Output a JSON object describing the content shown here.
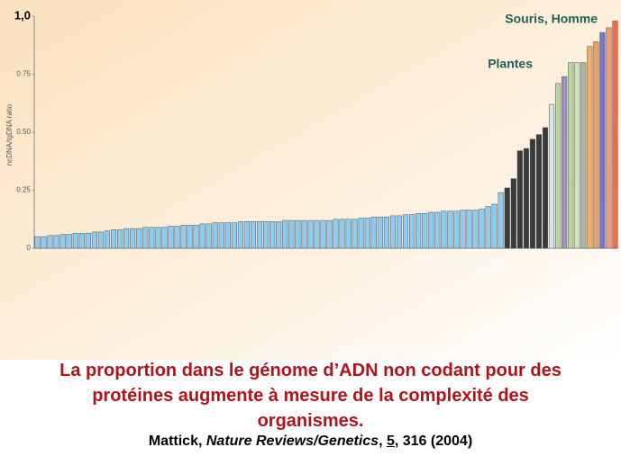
{
  "chart_data": {
    "type": "bar",
    "y_label": "ncDNA/tgDNA ratio",
    "annotations": [
      "Souris, Homme",
      "Plantes"
    ],
    "categories": [
      null,
      null,
      null,
      null,
      null,
      null,
      null,
      null,
      null,
      null,
      null,
      null,
      null,
      null,
      null,
      null,
      null,
      null,
      null,
      null,
      null,
      null,
      null,
      null,
      null,
      null,
      null,
      null,
      null,
      null,
      null,
      null,
      null,
      null,
      null,
      null,
      null,
      null,
      null,
      null,
      null,
      null,
      null,
      null,
      null,
      null,
      null,
      null,
      null,
      null,
      null,
      null,
      null,
      null,
      null,
      null,
      null,
      null,
      null,
      null,
      null,
      null,
      null,
      null,
      null,
      null,
      null,
      null,
      null,
      null,
      null,
      null,
      null,
      null,
      null,
      null,
      null,
      null,
      null,
      null,
      null,
      null,
      null,
      null,
      null,
      null,
      null,
      null,
      null,
      null,
      null,
      null
    ],
    "values": [
      0.05,
      0.05,
      0.055,
      0.055,
      0.06,
      0.06,
      0.065,
      0.065,
      0.065,
      0.07,
      0.07,
      0.075,
      0.08,
      0.08,
      0.085,
      0.085,
      0.085,
      0.09,
      0.09,
      0.09,
      0.09,
      0.095,
      0.095,
      0.1,
      0.1,
      0.1,
      0.105,
      0.105,
      0.11,
      0.11,
      0.11,
      0.11,
      0.115,
      0.115,
      0.115,
      0.115,
      0.115,
      0.115,
      0.115,
      0.12,
      0.12,
      0.12,
      0.12,
      0.12,
      0.12,
      0.12,
      0.12,
      0.125,
      0.125,
      0.125,
      0.125,
      0.13,
      0.13,
      0.135,
      0.135,
      0.135,
      0.14,
      0.14,
      0.145,
      0.145,
      0.15,
      0.15,
      0.155,
      0.155,
      0.16,
      0.16,
      0.16,
      0.165,
      0.165,
      0.165,
      0.17,
      0.18,
      0.19,
      0.24,
      0.26,
      0.3,
      0.42,
      0.43,
      0.47,
      0.49,
      0.52,
      0.62,
      0.71,
      0.74,
      0.8,
      0.8,
      0.8,
      0.87,
      0.89,
      0.93,
      0.95,
      0.98
    ],
    "colors": [
      "#8ecbee",
      "#8ecbee",
      "#8ecbee",
      "#8ecbee",
      "#8ecbee",
      "#8ecbee",
      "#8ecbee",
      "#8ecbee",
      "#8ecbee",
      "#8ecbee",
      "#8ecbee",
      "#8ecbee",
      "#8ecbee",
      "#8ecbee",
      "#8ecbee",
      "#8ecbee",
      "#8ecbee",
      "#8ecbee",
      "#8ecbee",
      "#8ecbee",
      "#8ecbee",
      "#8ecbee",
      "#8ecbee",
      "#8ecbee",
      "#8ecbee",
      "#8ecbee",
      "#8ecbee",
      "#8ecbee",
      "#8ecbee",
      "#8ecbee",
      "#8ecbee",
      "#8ecbee",
      "#8ecbee",
      "#8ecbee",
      "#8ecbee",
      "#8ecbee",
      "#8ecbee",
      "#8ecbee",
      "#8ecbee",
      "#8ecbee",
      "#8ecbee",
      "#8ecbee",
      "#8ecbee",
      "#8ecbee",
      "#8ecbee",
      "#8ecbee",
      "#8ecbee",
      "#8ecbee",
      "#8ecbee",
      "#8ecbee",
      "#8ecbee",
      "#8ecbee",
      "#8ecbee",
      "#8ecbee",
      "#8ecbee",
      "#8ecbee",
      "#8ecbee",
      "#8ecbee",
      "#8ecbee",
      "#8ecbee",
      "#8ecbee",
      "#8ecbee",
      "#8ecbee",
      "#8ecbee",
      "#8ecbee",
      "#8ecbee",
      "#8ecbee",
      "#8ecbee",
      "#8ecbee",
      "#8ecbee",
      "#8ecbee",
      "#8ecbee",
      "#8ecbee",
      "#8ecbee",
      "#3a3a3a",
      "#3a3a3a",
      "#3a3a3a",
      "#3a3a3a",
      "#3a3a3a",
      "#3a3a3a",
      "#3a3a3a",
      "#d6e6ee",
      "#b9d99c",
      "#a092c8",
      "#b9d99c",
      "#cfe3c0",
      "#a8b8a8",
      "#f3ad6e",
      "#f0a060",
      "#7b74c2",
      "#f09a78",
      "#e8704e"
    ],
    "ylim": [
      0,
      1
    ],
    "yticks": [
      0,
      0.25,
      {
        "value": 0.5,
        "label": "0.50"
      },
      0.75,
      {
        "value": 1,
        "label": "1,0"
      }
    ]
  },
  "caption": [
    "La proportion dans le génome d’ADN non codant pour des",
    "protéines augmente à mesure de la complexité des",
    "organismes."
  ],
  "citation": {
    "author": "Mattick, ",
    "journal": "Nature Reviews/Genetics",
    "sep1": ", ",
    "volume": "5",
    "rest": ", 316 (2004)"
  }
}
